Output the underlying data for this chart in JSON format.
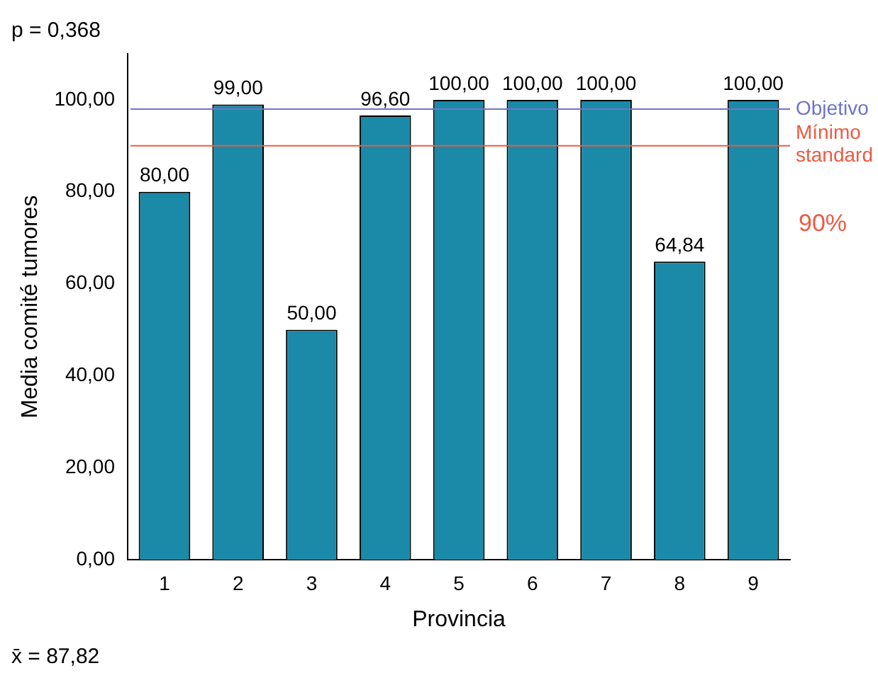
{
  "chart_data": {
    "type": "bar",
    "xlabel": "Provincia",
    "ylabel": "Media comité tumores",
    "categories": [
      "1",
      "2",
      "3",
      "4",
      "5",
      "6",
      "7",
      "8",
      "9"
    ],
    "values": [
      80,
      99,
      50,
      96.6,
      100,
      100,
      100,
      64.84,
      100
    ],
    "value_labels": [
      "80,00",
      "99,00",
      "50,00",
      "96,60",
      "100,00",
      "100,00",
      "100,00",
      "64,84",
      "100,00"
    ],
    "color": "#1b8aa8",
    "ylim": [
      0,
      110
    ],
    "yticks": [
      {
        "value": 0,
        "label": "0,00"
      },
      {
        "value": 20,
        "label": "20,00"
      },
      {
        "value": 40,
        "label": "40,00"
      },
      {
        "value": 60,
        "label": "60,00"
      },
      {
        "value": 80,
        "label": "80,00"
      },
      {
        "value": 100,
        "label": "100,00"
      }
    ],
    "grid": false,
    "legend": false,
    "ref_lines": [
      {
        "axis": "y",
        "value": 98,
        "label": "Objetivo",
        "color": "#6f74c8"
      },
      {
        "axis": "y",
        "value": 90,
        "label": "Mínimo standard",
        "color": "#ee5a42"
      }
    ],
    "annotations": [
      "p = 0,368",
      "x̄ = 87,82",
      "90%"
    ]
  }
}
